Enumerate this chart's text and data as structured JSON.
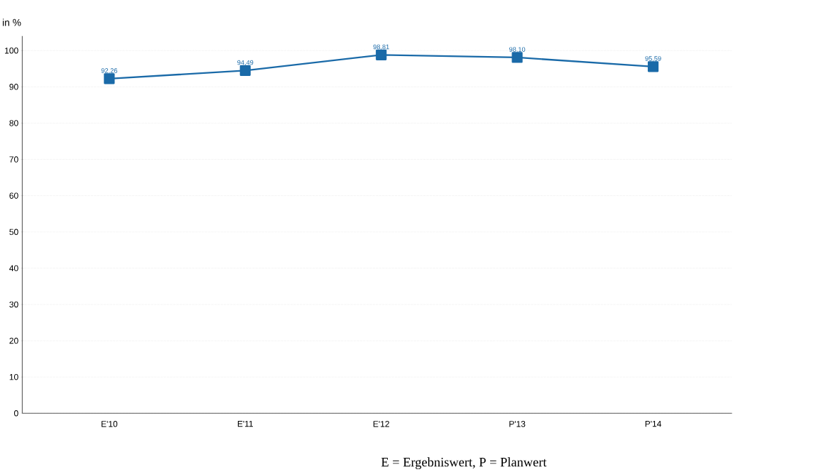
{
  "chart_data": {
    "type": "line",
    "ylabel": "in %",
    "categories": [
      "E'10",
      "E'11",
      "E'12",
      "P'13",
      "P'14"
    ],
    "values": [
      92.26,
      94.49,
      98.81,
      98.1,
      95.59
    ],
    "value_labels": [
      "92,26",
      "94,49",
      "98,81",
      "98,10",
      "95,59"
    ],
    "color": "#1a6aa8",
    "marker": "square",
    "line_style": "solid",
    "ylim": [
      0,
      104
    ],
    "yticks": [
      0,
      10,
      20,
      30,
      40,
      50,
      60,
      70,
      80,
      90,
      100
    ],
    "grid": "y",
    "annotations": [
      "E = Ergebniswert, P = Planwert"
    ]
  }
}
